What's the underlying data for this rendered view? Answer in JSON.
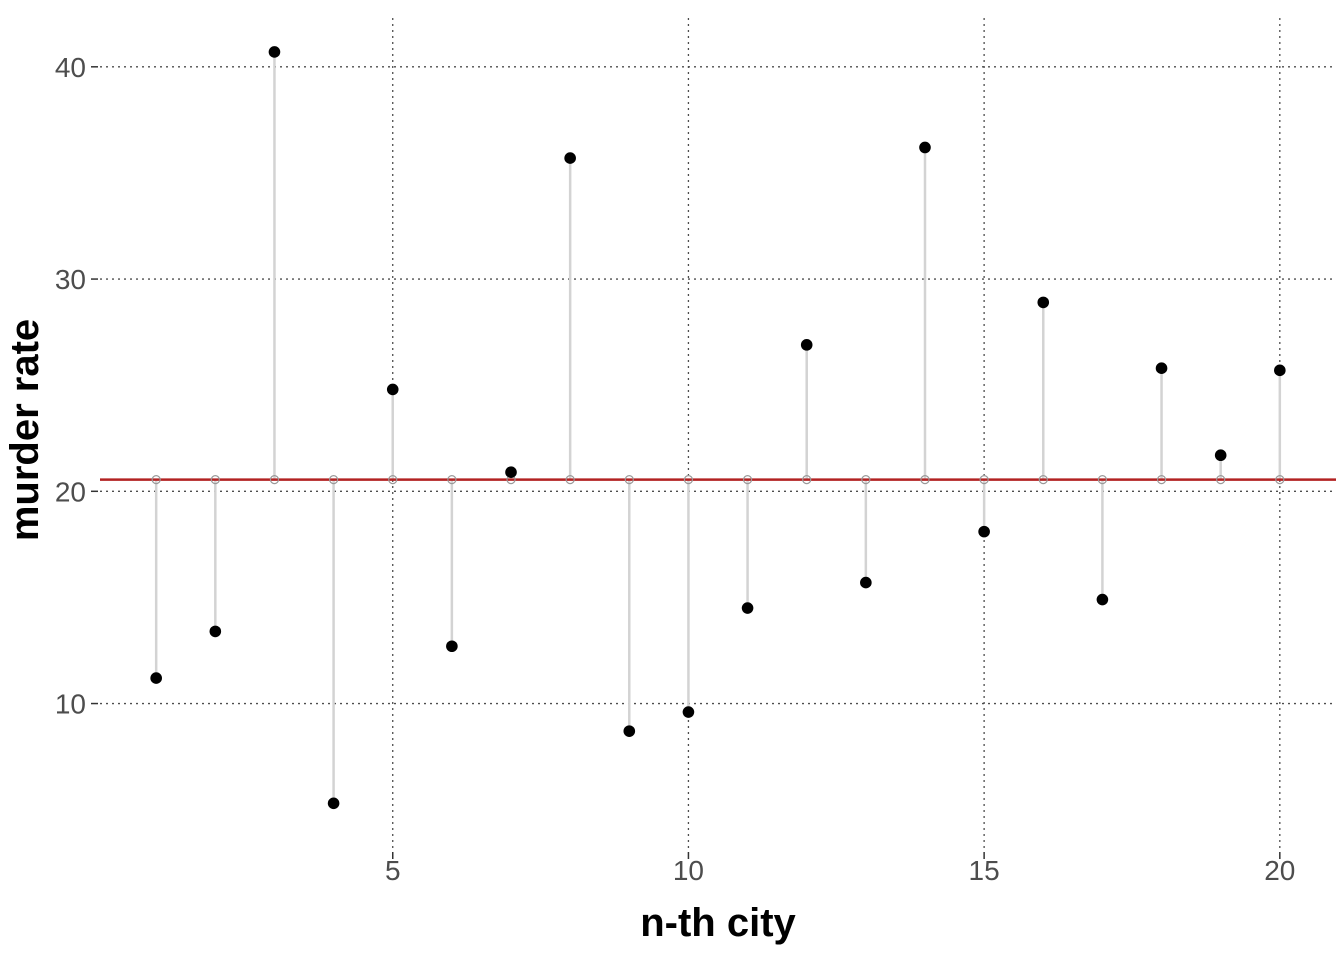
{
  "chart_data": {
    "type": "scatter",
    "title": "",
    "xlabel": "n-th city",
    "ylabel": "murder rate",
    "xlim": [
      0.05,
      20.95
    ],
    "ylim": [
      3.1,
      42.3
    ],
    "x_ticks": [
      5,
      10,
      15,
      20
    ],
    "y_ticks": [
      10,
      20,
      30,
      40
    ],
    "grid": "dotted major gridlines",
    "reference_line": {
      "y": 20.55,
      "color": "#b22222"
    },
    "segments_color": "#d3d3d3",
    "point_color": "#000000",
    "x": [
      1,
      2,
      3,
      4,
      5,
      6,
      7,
      8,
      9,
      10,
      11,
      12,
      13,
      14,
      15,
      16,
      17,
      18,
      19,
      20
    ],
    "y": [
      11.2,
      13.4,
      40.7,
      5.3,
      24.8,
      12.7,
      20.9,
      35.7,
      8.7,
      9.6,
      14.5,
      26.9,
      15.7,
      36.2,
      18.1,
      28.9,
      14.9,
      25.8,
      21.7,
      25.7
    ]
  }
}
